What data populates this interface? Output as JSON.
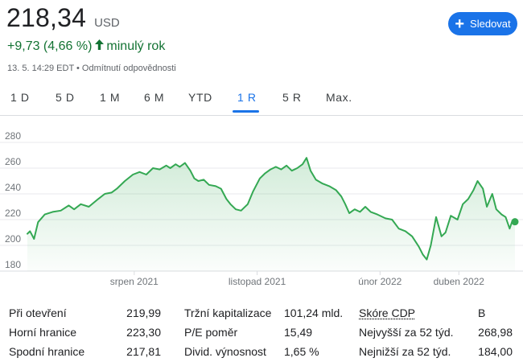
{
  "quote": {
    "price": "218,34",
    "currency": "USD",
    "change": "+9,73 (4,66 %)",
    "change_period": "minulý rok",
    "meta": "13. 5. 14:29 EDT • Odmítnutí odpovědnosti",
    "follow_label": "Sledovat",
    "colors": {
      "up": "#137333",
      "accent": "#1a73e8",
      "line": "#34a853"
    }
  },
  "tabs": [
    {
      "label": "1 D",
      "active": false
    },
    {
      "label": "5 D",
      "active": false
    },
    {
      "label": "1 M",
      "active": false
    },
    {
      "label": "6 M",
      "active": false
    },
    {
      "label": "YTD",
      "active": false
    },
    {
      "label": "1 R",
      "active": true
    },
    {
      "label": "5 R",
      "active": false
    },
    {
      "label": "Max.",
      "active": false
    }
  ],
  "stats": {
    "col1": [
      {
        "label": "Při otevření",
        "value": "219,99"
      },
      {
        "label": "Horní hranice",
        "value": "223,30"
      },
      {
        "label": "Spodní hranice",
        "value": "217,81"
      }
    ],
    "col2": [
      {
        "label": "Tržní kapitalizace",
        "value": "101,24 mld."
      },
      {
        "label": "P/E poměr",
        "value": "15,49"
      },
      {
        "label": "Divid. výnosnost",
        "value": "1,65 %"
      }
    ],
    "col3": [
      {
        "label": "Skóre CDP",
        "value": "B"
      },
      {
        "label": "Nejvyšší za 52 týd.",
        "value": "268,98"
      },
      {
        "label": "Nejnižší za 52 týd.",
        "value": "184,00"
      }
    ]
  },
  "chart_data": {
    "type": "area",
    "x_start": "2021-05-13",
    "x_end": "2022-05-13",
    "yticks": [
      180,
      200,
      220,
      240,
      260,
      280
    ],
    "ylim": [
      180,
      280
    ],
    "xticks": [
      {
        "label": "srpen 2021",
        "date": "2021-08-01"
      },
      {
        "label": "listopad 2021",
        "date": "2021-11-01"
      },
      {
        "label": "únor 2022",
        "date": "2022-02-01"
      },
      {
        "label": "duben 2022",
        "date": "2022-04-01"
      }
    ],
    "grid": true,
    "series": [
      {
        "points": [
          [
            "2021-05-13",
            209
          ],
          [
            "2021-05-15",
            211
          ],
          [
            "2021-05-18",
            205
          ],
          [
            "2021-05-21",
            218
          ],
          [
            "2021-05-26",
            224
          ],
          [
            "2021-06-01",
            226
          ],
          [
            "2021-06-07",
            227
          ],
          [
            "2021-06-13",
            231
          ],
          [
            "2021-06-17",
            228
          ],
          [
            "2021-06-22",
            232
          ],
          [
            "2021-06-28",
            230
          ],
          [
            "2021-07-05",
            236
          ],
          [
            "2021-07-10",
            240
          ],
          [
            "2021-07-15",
            241
          ],
          [
            "2021-07-19",
            244
          ],
          [
            "2021-07-25",
            250
          ],
          [
            "2021-07-31",
            255
          ],
          [
            "2021-08-05",
            257
          ],
          [
            "2021-08-10",
            255
          ],
          [
            "2021-08-15",
            260
          ],
          [
            "2021-08-20",
            259
          ],
          [
            "2021-08-25",
            262
          ],
          [
            "2021-08-28",
            260
          ],
          [
            "2021-09-01",
            263
          ],
          [
            "2021-09-04",
            261
          ],
          [
            "2021-09-08",
            264
          ],
          [
            "2021-09-12",
            258
          ],
          [
            "2021-09-15",
            252
          ],
          [
            "2021-09-18",
            250
          ],
          [
            "2021-09-22",
            251
          ],
          [
            "2021-09-26",
            247
          ],
          [
            "2021-10-01",
            246
          ],
          [
            "2021-10-05",
            244
          ],
          [
            "2021-10-09",
            236
          ],
          [
            "2021-10-12",
            232
          ],
          [
            "2021-10-16",
            228
          ],
          [
            "2021-10-20",
            227
          ],
          [
            "2021-10-25",
            232
          ],
          [
            "2021-10-29",
            242
          ],
          [
            "2021-11-03",
            252
          ],
          [
            "2021-11-07",
            256
          ],
          [
            "2021-11-11",
            259
          ],
          [
            "2021-11-15",
            261
          ],
          [
            "2021-11-19",
            259
          ],
          [
            "2021-11-23",
            262
          ],
          [
            "2021-11-27",
            258
          ],
          [
            "2021-12-01",
            260
          ],
          [
            "2021-12-05",
            263
          ],
          [
            "2021-12-08",
            268
          ],
          [
            "2021-12-11",
            258
          ],
          [
            "2021-12-15",
            251
          ],
          [
            "2021-12-20",
            248
          ],
          [
            "2021-12-25",
            246
          ],
          [
            "2021-12-30",
            243
          ],
          [
            "2022-01-03",
            238
          ],
          [
            "2022-01-06",
            232
          ],
          [
            "2022-01-09",
            225
          ],
          [
            "2022-01-13",
            228
          ],
          [
            "2022-01-17",
            226
          ],
          [
            "2022-01-21",
            230
          ],
          [
            "2022-01-25",
            226
          ],
          [
            "2022-01-30",
            224
          ],
          [
            "2022-02-05",
            221
          ],
          [
            "2022-02-10",
            220
          ],
          [
            "2022-02-15",
            213
          ],
          [
            "2022-02-20",
            211
          ],
          [
            "2022-02-25",
            207
          ],
          [
            "2022-03-02",
            199
          ],
          [
            "2022-03-05",
            193
          ],
          [
            "2022-03-08",
            189
          ],
          [
            "2022-03-11",
            200
          ],
          [
            "2022-03-15",
            222
          ],
          [
            "2022-03-19",
            207
          ],
          [
            "2022-03-22",
            210
          ],
          [
            "2022-03-26",
            223
          ],
          [
            "2022-03-31",
            220
          ],
          [
            "2022-04-04",
            232
          ],
          [
            "2022-04-08",
            236
          ],
          [
            "2022-04-12",
            243
          ],
          [
            "2022-04-15",
            250
          ],
          [
            "2022-04-19",
            244
          ],
          [
            "2022-04-22",
            230
          ],
          [
            "2022-04-26",
            240
          ],
          [
            "2022-04-29",
            228
          ],
          [
            "2022-05-03",
            224
          ],
          [
            "2022-05-06",
            222
          ],
          [
            "2022-05-09",
            213
          ],
          [
            "2022-05-11",
            219
          ],
          [
            "2022-05-13",
            218.34
          ]
        ]
      }
    ]
  }
}
